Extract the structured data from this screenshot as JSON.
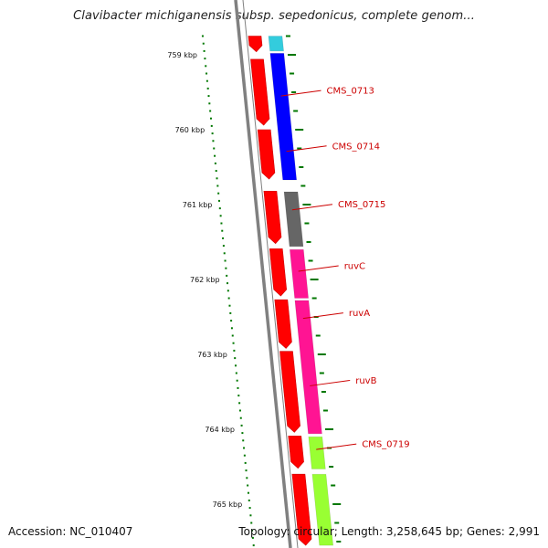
{
  "title": "Clavibacter michiganensis subsp. sepedonicus, complete genom...",
  "footer": {
    "accession": "Accession: NC_010407",
    "summary": "Topology: circular; Length: 3,258,645 bp; Genes: 2,991"
  },
  "colors": {
    "backbone": "#808080",
    "cds": "#ff0000",
    "cds_dark": "#cc0000",
    "tick": "#007700",
    "label": "#cc0000",
    "cat_cyan": "#33ccdd",
    "cat_blue": "#0000ff",
    "cat_gray": "#666666",
    "cat_pink": "#ff1493",
    "cat_lime": "#99ff33"
  },
  "chart_data": {
    "type": "genome-map",
    "units": "kbp",
    "ruler_labels": [
      {
        "kbp": 759,
        "label": "759 kbp"
      },
      {
        "kbp": 760,
        "label": "760 kbp"
      },
      {
        "kbp": 761,
        "label": "761 kbp"
      },
      {
        "kbp": 762,
        "label": "762 kbp"
      },
      {
        "kbp": 763,
        "label": "763 kbp"
      },
      {
        "kbp": 764,
        "label": "764 kbp"
      },
      {
        "kbp": 765,
        "label": "765 kbp"
      }
    ],
    "cds_features": [
      {
        "start": 758.75,
        "end": 758.96
      },
      {
        "start": 759.06,
        "end": 759.94
      },
      {
        "start": 760.0,
        "end": 760.66
      },
      {
        "start": 760.82,
        "end": 761.52
      },
      {
        "start": 761.59,
        "end": 762.22
      },
      {
        "start": 762.27,
        "end": 762.92
      },
      {
        "start": 762.96,
        "end": 764.04
      },
      {
        "start": 764.09,
        "end": 764.52
      },
      {
        "start": 764.6,
        "end": 765.55
      }
    ],
    "category_features": [
      {
        "start": 758.75,
        "end": 758.95,
        "color_key": "cat_cyan"
      },
      {
        "start": 758.98,
        "end": 760.67,
        "color_key": "cat_blue"
      },
      {
        "start": 760.83,
        "end": 761.56,
        "color_key": "cat_gray"
      },
      {
        "start": 761.6,
        "end": 762.25,
        "color_key": "cat_pink"
      },
      {
        "start": 762.28,
        "end": 764.06,
        "color_key": "cat_pink"
      },
      {
        "start": 764.1,
        "end": 764.53,
        "color_key": "cat_lime"
      },
      {
        "start": 764.6,
        "end": 765.55,
        "color_key": "cat_lime"
      }
    ],
    "gene_labels": [
      {
        "name": "CMS_0713",
        "kbp": 759.55
      },
      {
        "name": "CMS_0714",
        "kbp": 760.29
      },
      {
        "name": "CMS_0715",
        "kbp": 761.07
      },
      {
        "name": "ruvC",
        "kbp": 761.89
      },
      {
        "name": "ruvA",
        "kbp": 762.52
      },
      {
        "name": "ruvB",
        "kbp": 763.42
      },
      {
        "name": "CMS_0719",
        "kbp": 764.27
      }
    ]
  }
}
